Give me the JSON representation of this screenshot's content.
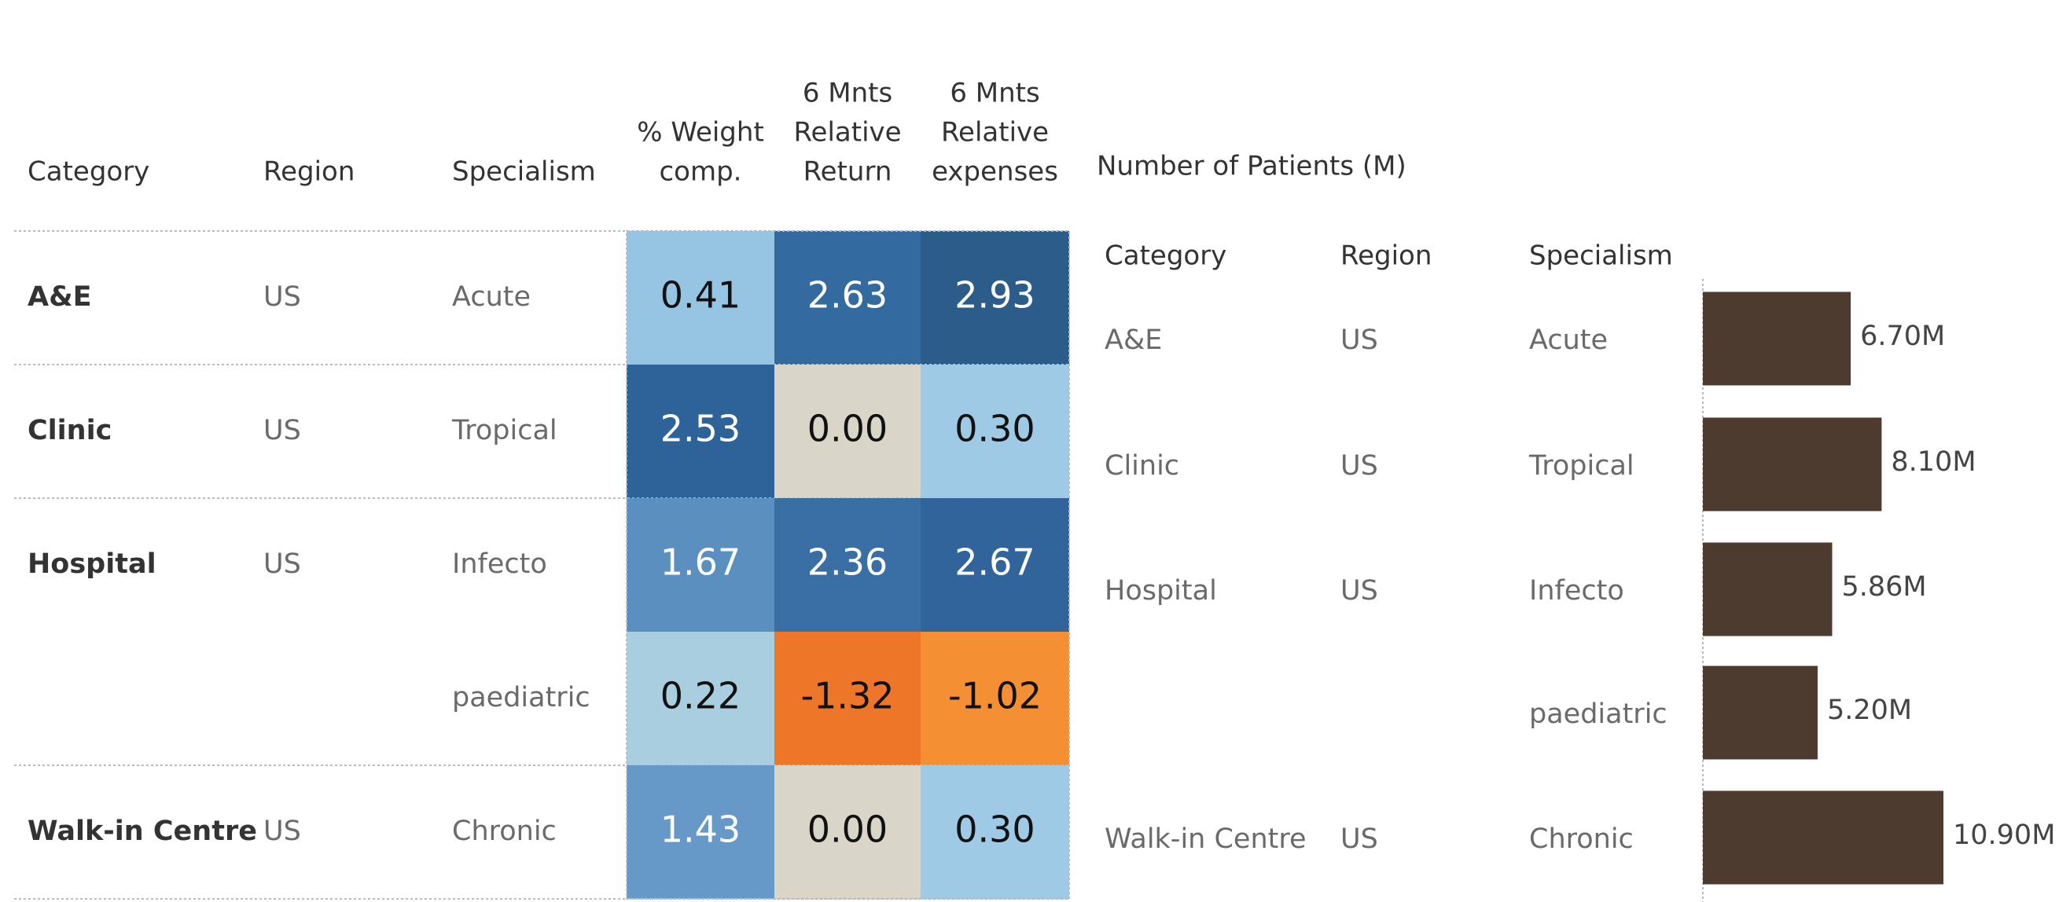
{
  "table": {
    "headers": [
      [
        "Category"
      ],
      [
        "Region"
      ],
      [
        "Specialism"
      ],
      [
        "% Weight",
        "comp."
      ],
      [
        "6  Mnts",
        "Relative",
        "Return"
      ],
      [
        "6 Mnts",
        "Relative",
        "expenses"
      ]
    ],
    "rows": [
      [
        "A&E",
        "US",
        "Acute",
        "0.41",
        "2.63",
        "2.93"
      ],
      [
        "Clinic",
        "US",
        "Tropical",
        "2.53",
        "0.00",
        "0.30"
      ],
      [
        "Hospital",
        "US",
        "Infecto",
        "1.67",
        "2.36",
        "2.67"
      ],
      [
        null,
        null,
        "paediatric",
        "0.22",
        "-1.32",
        "-1.02"
      ],
      [
        "Walk-in Centre",
        "US",
        "Chronic",
        "1.43",
        "0.00",
        "0.30"
      ]
    ],
    "cell_colors": [
      [
        "#96c5e3",
        "#336ba0",
        "#2b5c8a"
      ],
      [
        "#2e639a",
        "#d9d5c9",
        "#9ecae6"
      ],
      [
        "#5b8fc0",
        "#3a6fa6",
        "#30649a"
      ],
      [
        "#a8cee0",
        "#ee7628",
        "#f48f33"
      ],
      [
        "#6699c8",
        "#d9d5c9",
        "#9ecae6"
      ]
    ]
  },
  "chart_data": {
    "type": "bar",
    "title": "Number of Patients (M)",
    "headers": [
      "Category",
      "Region",
      "Specialism"
    ],
    "categories": [
      "A&E",
      "Clinic",
      "Hospital",
      null,
      "Walk-in Centre"
    ],
    "regions": [
      "US",
      "US",
      "US",
      null,
      "US"
    ],
    "specialisms": [
      "Acute",
      "Tropical",
      "Infecto",
      "paediatric",
      "Chronic"
    ],
    "values": [
      6.7,
      8.1,
      5.86,
      5.2,
      10.9
    ],
    "value_labels": [
      "6.70M",
      "8.10M",
      "5.86M",
      "5.20M",
      "10.90M"
    ],
    "color": "#4e3b30"
  }
}
